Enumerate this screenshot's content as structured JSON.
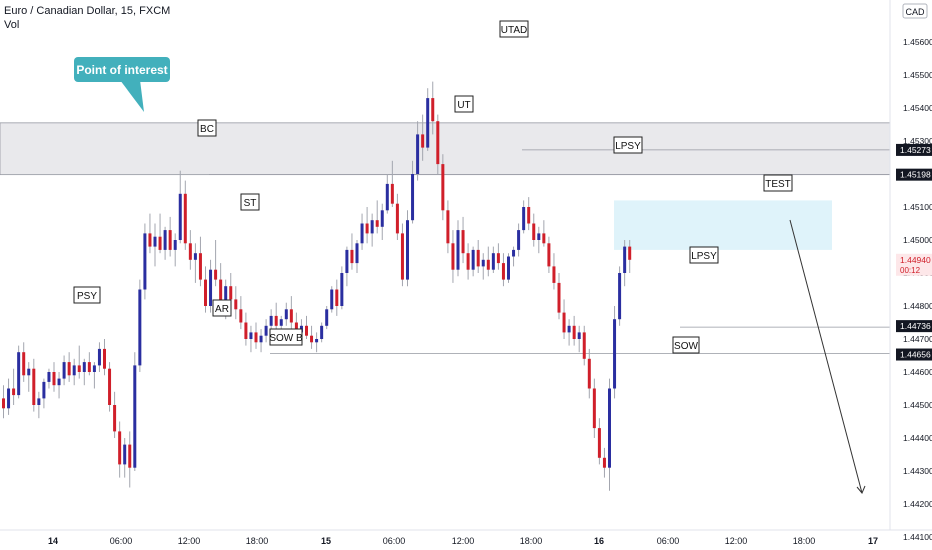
{
  "header": {
    "symbol_line": "Euro / Canadian Dollar, 15, FXCM",
    "indicator": "Vol",
    "currency": "CAD"
  },
  "callout": {
    "text": "Point of interest"
  },
  "chart_data": {
    "type": "candlestick",
    "title": "Euro / Canadian Dollar, 15, FXCM",
    "ylim": [
      1.4407,
      1.4567
    ],
    "y_ticks": [
      "1.45600",
      "1.45500",
      "1.45400",
      "1.45300",
      "1.45100",
      "1.45000",
      "1.44900",
      "1.44800",
      "1.44700",
      "1.44600",
      "1.44500",
      "1.44400",
      "1.44300",
      "1.44200",
      "1.44100"
    ],
    "x_ticks": [
      "14",
      "06:00",
      "12:00",
      "18:00",
      "15",
      "06:00",
      "12:00",
      "18:00",
      "16",
      "06:00",
      "12:00",
      "18:00",
      "17"
    ],
    "price_markers": [
      {
        "value": "1.45273",
        "style": "dark"
      },
      {
        "value": "1.45198",
        "style": "dark"
      },
      {
        "value": "1.44736",
        "style": "dark"
      },
      {
        "value": "1.44656",
        "style": "dark"
      },
      {
        "value": "1.44940",
        "style": "last",
        "sub": "00:12"
      }
    ],
    "zones": [
      {
        "name": "supply-zone",
        "from": 1.45198,
        "to": 1.45355,
        "color": "#e9e9ec"
      },
      {
        "name": "test-zone",
        "from": 1.4497,
        "to": 1.4512,
        "color": "#dff3fa"
      }
    ],
    "levels": [
      1.45273,
      1.45198,
      1.44736,
      1.44656
    ],
    "annotations": [
      "PSY",
      "AR",
      "BC",
      "ST",
      "SOW B",
      "UT",
      "UTAD",
      "LPSY",
      "LPSY",
      "SOW",
      "TEST"
    ],
    "candles": [
      [
        1.4452,
        1.4456,
        1.4446,
        1.4449
      ],
      [
        1.4449,
        1.4458,
        1.4447,
        1.4455
      ],
      [
        1.4455,
        1.4461,
        1.445,
        1.4453
      ],
      [
        1.4453,
        1.4468,
        1.4452,
        1.4466
      ],
      [
        1.4466,
        1.4469,
        1.4457,
        1.4459
      ],
      [
        1.4459,
        1.4463,
        1.4454,
        1.4461
      ],
      [
        1.4461,
        1.4464,
        1.4448,
        1.445
      ],
      [
        1.445,
        1.4454,
        1.4446,
        1.4452
      ],
      [
        1.4452,
        1.4458,
        1.4449,
        1.4457
      ],
      [
        1.4457,
        1.4461,
        1.4455,
        1.446
      ],
      [
        1.446,
        1.4463,
        1.4454,
        1.4456
      ],
      [
        1.4456,
        1.446,
        1.4452,
        1.4458
      ],
      [
        1.4458,
        1.4465,
        1.4456,
        1.4463
      ],
      [
        1.4463,
        1.4466,
        1.4457,
        1.4459
      ],
      [
        1.4459,
        1.4464,
        1.4456,
        1.4462
      ],
      [
        1.4462,
        1.4468,
        1.4458,
        1.446
      ],
      [
        1.446,
        1.4464,
        1.4456,
        1.4463
      ],
      [
        1.4463,
        1.4466,
        1.4459,
        1.446
      ],
      [
        1.446,
        1.4463,
        1.4455,
        1.4462
      ],
      [
        1.4462,
        1.4469,
        1.446,
        1.4467
      ],
      [
        1.4467,
        1.447,
        1.4459,
        1.4461
      ],
      [
        1.4461,
        1.4463,
        1.4448,
        1.445
      ],
      [
        1.445,
        1.4454,
        1.444,
        1.4442
      ],
      [
        1.4442,
        1.4445,
        1.4428,
        1.4432
      ],
      [
        1.4432,
        1.444,
        1.4428,
        1.4438
      ],
      [
        1.4438,
        1.4442,
        1.4425,
        1.4431
      ],
      [
        1.4431,
        1.4466,
        1.443,
        1.4462
      ],
      [
        1.4462,
        1.4488,
        1.446,
        1.4485
      ],
      [
        1.4485,
        1.4505,
        1.4482,
        1.4502
      ],
      [
        1.4502,
        1.4508,
        1.4496,
        1.4498
      ],
      [
        1.4498,
        1.4505,
        1.4492,
        1.4501
      ],
      [
        1.4501,
        1.4508,
        1.4496,
        1.4497
      ],
      [
        1.4497,
        1.4504,
        1.4494,
        1.4503
      ],
      [
        1.4503,
        1.4507,
        1.4495,
        1.4497
      ],
      [
        1.4497,
        1.4502,
        1.4492,
        1.45
      ],
      [
        1.45,
        1.4521,
        1.4499,
        1.4514
      ],
      [
        1.4514,
        1.4518,
        1.4497,
        1.4499
      ],
      [
        1.4499,
        1.4503,
        1.4491,
        1.4494
      ],
      [
        1.4494,
        1.4499,
        1.4487,
        1.4496
      ],
      [
        1.4496,
        1.4501,
        1.4486,
        1.4488
      ],
      [
        1.4488,
        1.4492,
        1.4478,
        1.448
      ],
      [
        1.448,
        1.4494,
        1.4478,
        1.4491
      ],
      [
        1.4491,
        1.45,
        1.4486,
        1.4488
      ],
      [
        1.4488,
        1.4493,
        1.4478,
        1.448
      ],
      [
        1.448,
        1.4488,
        1.4476,
        1.4486
      ],
      [
        1.4486,
        1.449,
        1.448,
        1.4482
      ],
      [
        1.4482,
        1.4486,
        1.4476,
        1.4479
      ],
      [
        1.4479,
        1.4483,
        1.4473,
        1.4475
      ],
      [
        1.4475,
        1.4478,
        1.4468,
        1.447
      ],
      [
        1.447,
        1.4474,
        1.4466,
        1.4472
      ],
      [
        1.4472,
        1.4475,
        1.4467,
        1.4469
      ],
      [
        1.4469,
        1.4473,
        1.4466,
        1.4471
      ],
      [
        1.4471,
        1.4476,
        1.4469,
        1.4474
      ],
      [
        1.4474,
        1.4479,
        1.4471,
        1.4477
      ],
      [
        1.4477,
        1.4481,
        1.4472,
        1.4474
      ],
      [
        1.4474,
        1.4477,
        1.4469,
        1.4476
      ],
      [
        1.4476,
        1.4481,
        1.4474,
        1.4479
      ],
      [
        1.4479,
        1.4483,
        1.4473,
        1.4475
      ],
      [
        1.4475,
        1.4478,
        1.447,
        1.4472
      ],
      [
        1.4472,
        1.4476,
        1.4468,
        1.4474
      ],
      [
        1.4474,
        1.4477,
        1.447,
        1.4471
      ],
      [
        1.4471,
        1.4474,
        1.4467,
        1.4469
      ],
      [
        1.4469,
        1.4472,
        1.4466,
        1.447
      ],
      [
        1.447,
        1.4475,
        1.4469,
        1.4474
      ],
      [
        1.4474,
        1.448,
        1.4473,
        1.4479
      ],
      [
        1.4479,
        1.4486,
        1.4478,
        1.4485
      ],
      [
        1.4485,
        1.4488,
        1.4477,
        1.448
      ],
      [
        1.448,
        1.4492,
        1.4479,
        1.449
      ],
      [
        1.449,
        1.4498,
        1.4486,
        1.4497
      ],
      [
        1.4497,
        1.4502,
        1.4491,
        1.4493
      ],
      [
        1.4493,
        1.45,
        1.449,
        1.4499
      ],
      [
        1.4499,
        1.4508,
        1.4497,
        1.4505
      ],
      [
        1.4505,
        1.451,
        1.4499,
        1.4502
      ],
      [
        1.4502,
        1.4508,
        1.4498,
        1.4506
      ],
      [
        1.4506,
        1.4512,
        1.4502,
        1.4504
      ],
      [
        1.4504,
        1.4511,
        1.45,
        1.4509
      ],
      [
        1.4509,
        1.452,
        1.4508,
        1.4517
      ],
      [
        1.4517,
        1.4524,
        1.451,
        1.4511
      ],
      [
        1.4511,
        1.4514,
        1.45,
        1.4502
      ],
      [
        1.4502,
        1.4505,
        1.4486,
        1.4488
      ],
      [
        1.4488,
        1.4509,
        1.4486,
        1.4506
      ],
      [
        1.4506,
        1.4524,
        1.4505,
        1.452
      ],
      [
        1.452,
        1.4536,
        1.4518,
        1.4532
      ],
      [
        1.4532,
        1.4538,
        1.4524,
        1.4528
      ],
      [
        1.4528,
        1.4546,
        1.4527,
        1.4543
      ],
      [
        1.4543,
        1.4548,
        1.4532,
        1.4536
      ],
      [
        1.4536,
        1.4538,
        1.452,
        1.4523
      ],
      [
        1.4523,
        1.4526,
        1.4506,
        1.4509
      ],
      [
        1.4509,
        1.4512,
        1.4496,
        1.4499
      ],
      [
        1.4499,
        1.4503,
        1.4487,
        1.4491
      ],
      [
        1.4491,
        1.4506,
        1.4489,
        1.4503
      ],
      [
        1.4503,
        1.4507,
        1.4493,
        1.4496
      ],
      [
        1.4496,
        1.4499,
        1.4488,
        1.4491
      ],
      [
        1.4491,
        1.4498,
        1.4489,
        1.4497
      ],
      [
        1.4497,
        1.45,
        1.449,
        1.4492
      ],
      [
        1.4492,
        1.4496,
        1.4488,
        1.4494
      ],
      [
        1.4494,
        1.4498,
        1.4489,
        1.4491
      ],
      [
        1.4491,
        1.4498,
        1.449,
        1.4496
      ],
      [
        1.4496,
        1.4499,
        1.4491,
        1.4493
      ],
      [
        1.4493,
        1.4496,
        1.4486,
        1.4488
      ],
      [
        1.4488,
        1.4496,
        1.4487,
        1.4495
      ],
      [
        1.4495,
        1.4498,
        1.4492,
        1.4497
      ],
      [
        1.4497,
        1.4505,
        1.4495,
        1.4503
      ],
      [
        1.4503,
        1.4512,
        1.4502,
        1.451
      ],
      [
        1.451,
        1.4513,
        1.4503,
        1.4505
      ],
      [
        1.4505,
        1.4508,
        1.4498,
        1.45
      ],
      [
        1.45,
        1.4504,
        1.4496,
        1.4502
      ],
      [
        1.4502,
        1.4506,
        1.4498,
        1.4499
      ],
      [
        1.4499,
        1.4501,
        1.449,
        1.4492
      ],
      [
        1.4492,
        1.4496,
        1.4485,
        1.4487
      ],
      [
        1.4487,
        1.449,
        1.4476,
        1.4478
      ],
      [
        1.4478,
        1.4482,
        1.447,
        1.4472
      ],
      [
        1.4472,
        1.4476,
        1.4468,
        1.4474
      ],
      [
        1.4474,
        1.4477,
        1.4468,
        1.447
      ],
      [
        1.447,
        1.4474,
        1.4466,
        1.4472
      ],
      [
        1.4472,
        1.4474,
        1.4462,
        1.4464
      ],
      [
        1.4464,
        1.4467,
        1.4452,
        1.4455
      ],
      [
        1.4455,
        1.4458,
        1.444,
        1.4443
      ],
      [
        1.4443,
        1.4446,
        1.4432,
        1.4434
      ],
      [
        1.4434,
        1.4437,
        1.4428,
        1.4431
      ],
      [
        1.4431,
        1.4458,
        1.4424,
        1.4455
      ],
      [
        1.4455,
        1.448,
        1.4452,
        1.4476
      ],
      [
        1.4476,
        1.4492,
        1.4474,
        1.449
      ],
      [
        1.449,
        1.45,
        1.4486,
        1.4498
      ],
      [
        1.4498,
        1.45,
        1.449,
        1.4494
      ]
    ]
  }
}
